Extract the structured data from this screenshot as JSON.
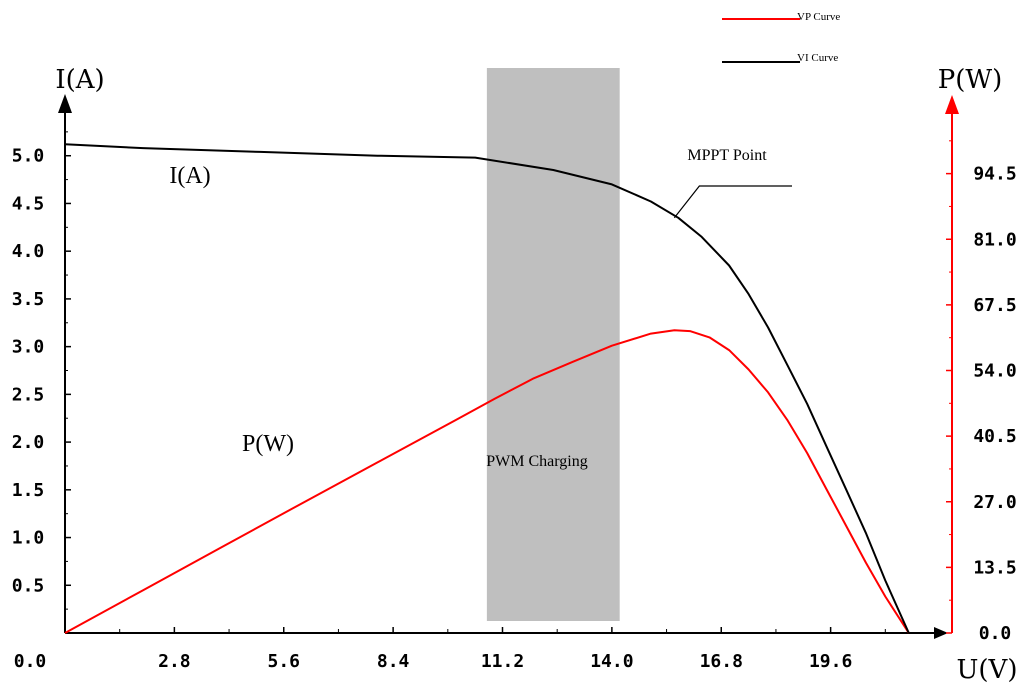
{
  "chart_data": {
    "type": "line",
    "x_axis": {
      "label": "U(V)",
      "ticks": [
        "0.0",
        "2.8",
        "5.6",
        "8.4",
        "11.2",
        "14.0",
        "16.8",
        "19.6"
      ],
      "range": [
        0,
        22.4
      ]
    },
    "y_left": {
      "label": "I(A)",
      "ticks": [
        "0.5",
        "1.0",
        "1.5",
        "2.0",
        "2.5",
        "3.0",
        "3.5",
        "4.0",
        "4.5",
        "5.0"
      ],
      "range": [
        0,
        5.5
      ]
    },
    "y_right": {
      "label": "P(W)",
      "ticks": [
        "0.0",
        "13.5",
        "27.0",
        "40.5",
        "54.0",
        "67.5",
        "81.0",
        "94.5"
      ],
      "range": [
        0,
        108
      ]
    },
    "series": [
      {
        "name": "VP Curve",
        "axis": "right",
        "color": "#ff0000",
        "points": [
          [
            0,
            0
          ],
          [
            2,
            8.8
          ],
          [
            4,
            17.6
          ],
          [
            6,
            26.4
          ],
          [
            8,
            35.1
          ],
          [
            10,
            43.8
          ],
          [
            11,
            48.2
          ],
          [
            12,
            52.4
          ],
          [
            13,
            55.8
          ],
          [
            14,
            59.1
          ],
          [
            15,
            61.6
          ],
          [
            15.6,
            62.3
          ],
          [
            16,
            62.1
          ],
          [
            16.5,
            60.8
          ],
          [
            17,
            58.2
          ],
          [
            17.5,
            54.2
          ],
          [
            18,
            49.5
          ],
          [
            18.5,
            43.7
          ],
          [
            19,
            37
          ],
          [
            19.5,
            29.5
          ],
          [
            20,
            22
          ],
          [
            20.5,
            14.5
          ],
          [
            21,
            7.5
          ],
          [
            21.6,
            0
          ]
        ]
      },
      {
        "name": "VI Curve",
        "axis": "left",
        "color": "#000000",
        "points": [
          [
            0,
            5.12
          ],
          [
            2,
            5.08
          ],
          [
            5,
            5.04
          ],
          [
            8,
            5.0
          ],
          [
            10.5,
            4.98
          ],
          [
            12.5,
            4.85
          ],
          [
            14,
            4.7
          ],
          [
            15,
            4.52
          ],
          [
            15.7,
            4.35
          ],
          [
            16.3,
            4.15
          ],
          [
            17,
            3.85
          ],
          [
            17.5,
            3.55
          ],
          [
            18,
            3.2
          ],
          [
            18.5,
            2.8
          ],
          [
            19,
            2.4
          ],
          [
            19.5,
            1.95
          ],
          [
            20,
            1.5
          ],
          [
            20.5,
            1.05
          ],
          [
            21,
            0.55
          ],
          [
            21.6,
            0
          ]
        ]
      }
    ],
    "legend": {
      "position": "top-right",
      "entries": [
        "VP Curve",
        "VI Curve"
      ]
    },
    "annotations": {
      "shaded_region": {
        "label": "PWM Charging",
        "x_range": [
          10.8,
          14.2
        ]
      },
      "mppt": {
        "label": "MPPT Point",
        "x": 15.6,
        "y_current": 4.35
      },
      "ia_label": "I(A)",
      "pw_label": "P(W)"
    },
    "grid": false
  }
}
